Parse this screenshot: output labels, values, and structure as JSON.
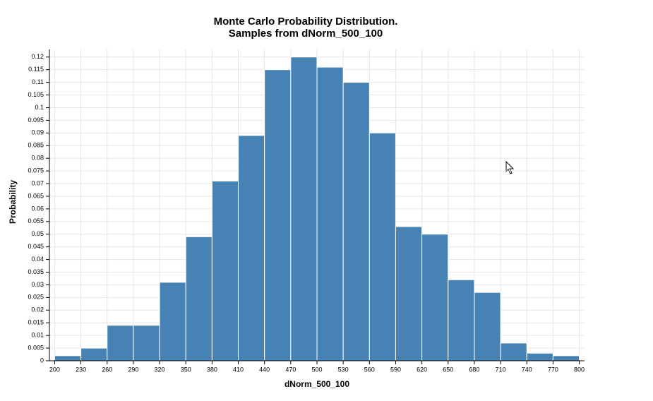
{
  "chart_data": {
    "type": "histogram",
    "title": "Monte Carlo Probability Distribution.",
    "subtitle": "Samples from dNorm_500_100",
    "x_label": "dNorm_500_100",
    "y_label": "Probability",
    "bins": [
      200,
      230,
      260,
      290,
      320,
      350,
      380,
      410,
      440,
      470,
      500,
      530,
      560,
      590,
      620,
      650,
      680,
      710,
      740,
      770,
      800
    ],
    "values": [
      0.002,
      0.005,
      0.014,
      0.014,
      0.031,
      0.049,
      0.071,
      0.089,
      0.115,
      0.12,
      0.116,
      0.11,
      0.09,
      0.053,
      0.05,
      0.032,
      0.027,
      0.007,
      0.003,
      0.002
    ],
    "color": "#4682b4",
    "xlim": [
      194,
      806
    ],
    "ylim": [
      0,
      0.123
    ],
    "xticks": [
      200,
      230,
      260,
      290,
      320,
      350,
      380,
      410,
      440,
      470,
      500,
      530,
      560,
      590,
      620,
      650,
      680,
      710,
      740,
      770,
      800
    ],
    "yticks": [
      0,
      0.005,
      0.01,
      0.015,
      0.02,
      0.025,
      0.03,
      0.035,
      0.04,
      0.045,
      0.05,
      0.055,
      0.06,
      0.065,
      0.07,
      0.075,
      0.08,
      0.085,
      0.09,
      0.095,
      0.1,
      0.105,
      0.11,
      0.115,
      0.12
    ],
    "grid": true
  }
}
